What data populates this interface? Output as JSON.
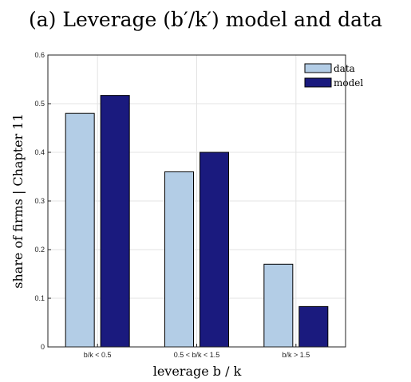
{
  "chart_data": {
    "type": "bar",
    "title": "(a) Leverage (b′/k′) model and data",
    "xlabel": "leverage b / k",
    "ylabel": "share of firms | Chapter 11",
    "categories": [
      "b/k < 0.5",
      "0.5 < b/k < 1.5",
      "b/k > 1.5"
    ],
    "series": [
      {
        "name": "data",
        "values": [
          0.48,
          0.36,
          0.17
        ],
        "color": "#b3cde6"
      },
      {
        "name": "model",
        "values": [
          0.517,
          0.4,
          0.083
        ],
        "color": "#1a1a7e"
      }
    ],
    "ylim": [
      0,
      0.6
    ],
    "yticks": [
      "0",
      "0.1",
      "0.2",
      "0.3",
      "0.4",
      "0.5",
      "0.6"
    ],
    "grid": true,
    "legend_position": "top-right"
  }
}
